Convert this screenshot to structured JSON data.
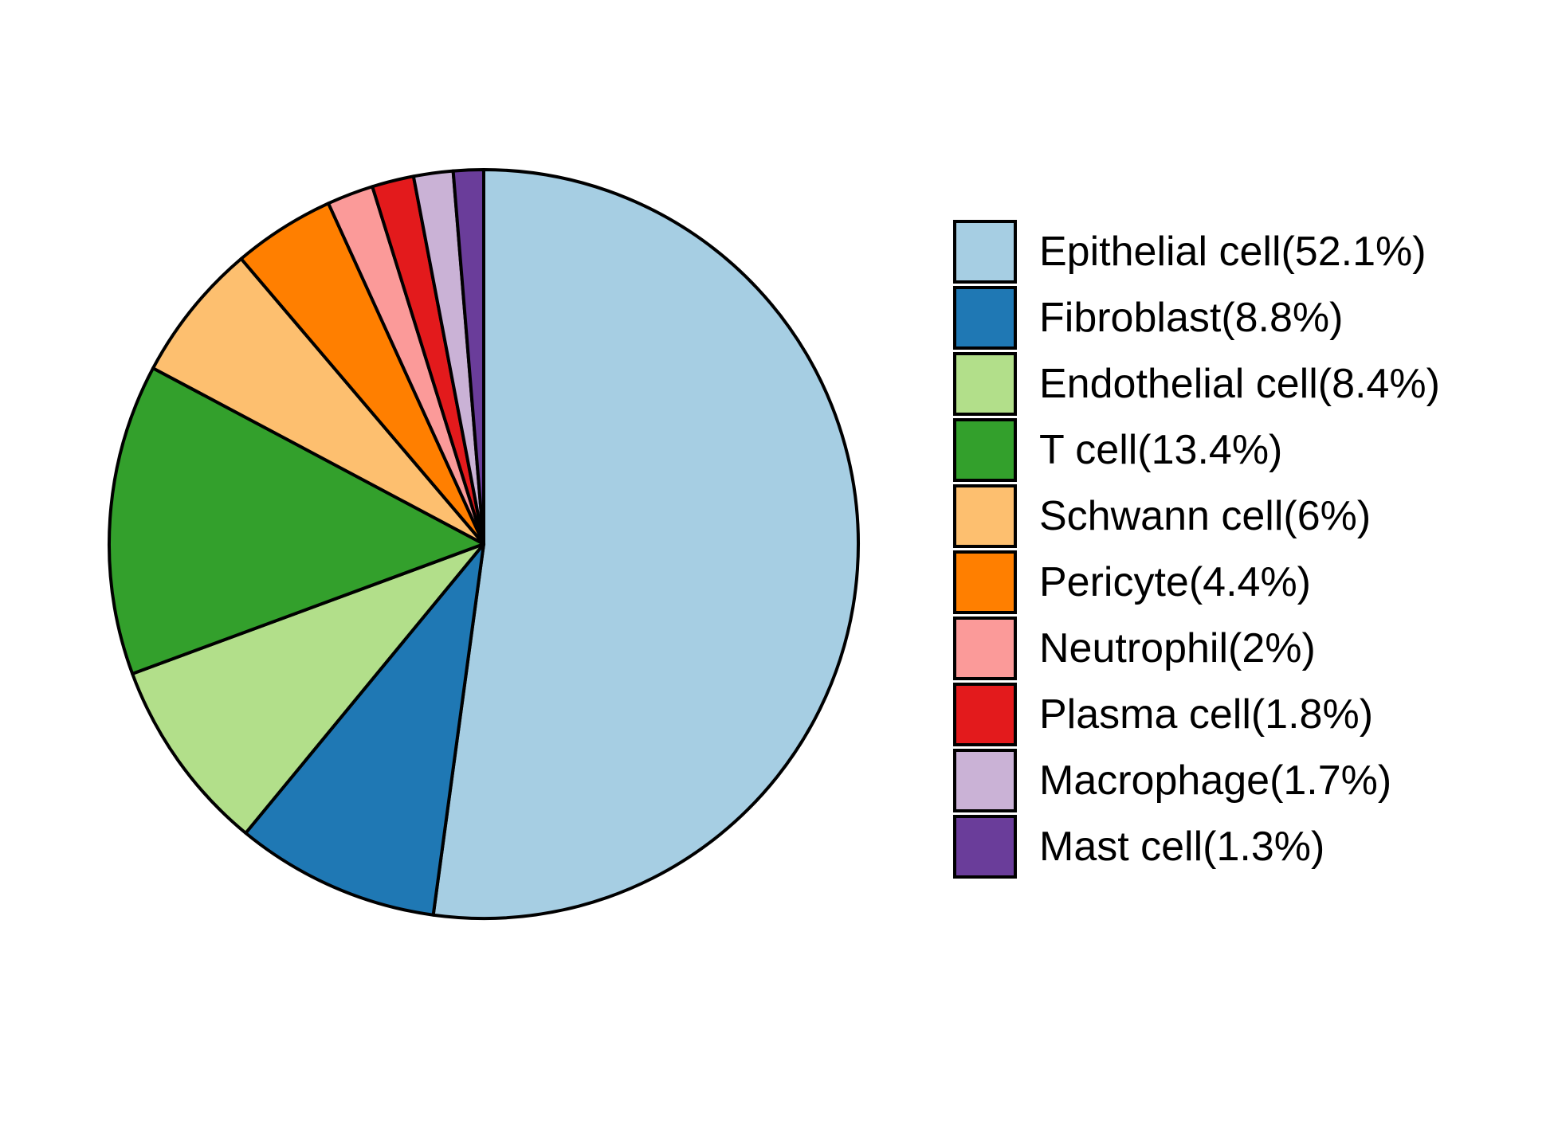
{
  "figure": {
    "background_color": "#ffffff",
    "stroke_color": "#000000"
  },
  "chart_data": {
    "type": "pie",
    "title": "",
    "start_angle": "12-o-clock",
    "direction": "clockwise",
    "grid": false,
    "legend_position": "right",
    "slices": [
      {
        "name": "Epithelial cell",
        "value": 52.1,
        "label": "Epithelial cell(52.1%)",
        "color": "#A6CEE3"
      },
      {
        "name": "Fibroblast",
        "value": 8.8,
        "label": "Fibroblast(8.8%)",
        "color": "#1F78B4"
      },
      {
        "name": "Endothelial cell",
        "value": 8.4,
        "label": "Endothelial cell(8.4%)",
        "color": "#B2DF8A"
      },
      {
        "name": "T cell",
        "value": 13.4,
        "label": "T cell(13.4%)",
        "color": "#33A02C"
      },
      {
        "name": "Schwann cell",
        "value": 6,
        "label": "Schwann cell(6%)",
        "color": "#FDBF6F"
      },
      {
        "name": "Pericyte",
        "value": 4.4,
        "label": "Pericyte(4.4%)",
        "color": "#FF7F00"
      },
      {
        "name": "Neutrophil",
        "value": 2,
        "label": "Neutrophil(2%)",
        "color": "#FB9A99"
      },
      {
        "name": "Plasma cell",
        "value": 1.8,
        "label": "Plasma cell(1.8%)",
        "color": "#E31A1C"
      },
      {
        "name": "Macrophage",
        "value": 1.7,
        "label": "Macrophage(1.7%)",
        "color": "#CAB2D6"
      },
      {
        "name": "Mast cell",
        "value": 1.3,
        "label": "Mast cell(1.3%)",
        "color": "#6A3D9A"
      }
    ]
  }
}
